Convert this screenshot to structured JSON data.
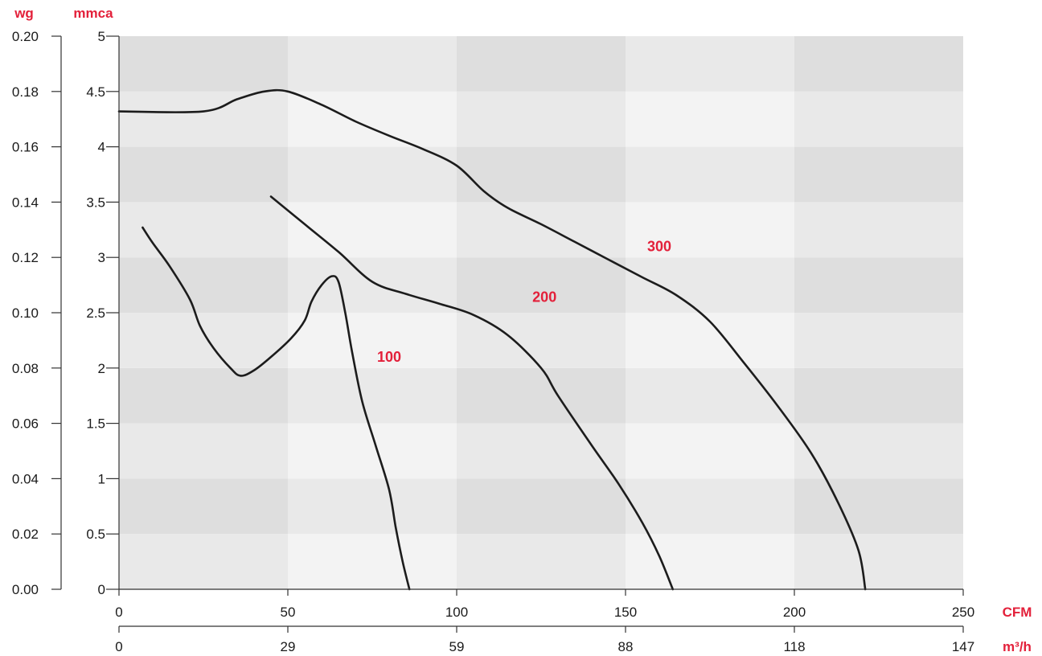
{
  "chart_data": {
    "type": "line",
    "units": {
      "wg": "wg",
      "mmca": "mmca",
      "cfm": "CFM",
      "m3h": "m³/h"
    },
    "y_left_wg": {
      "ticks": [
        0.0,
        0.02,
        0.04,
        0.06,
        0.08,
        0.1,
        0.12,
        0.14,
        0.16,
        0.18,
        0.2
      ],
      "tick_labels": [
        "0.00",
        "0.02",
        "0.04",
        "0.06",
        "0.08",
        "0.10",
        "0.12",
        "0.14",
        "0.16",
        "0.18",
        "0.20"
      ]
    },
    "y_mmca": {
      "ylim": [
        0,
        5
      ],
      "ticks": [
        0,
        0.5,
        1,
        1.5,
        2,
        2.5,
        3,
        3.5,
        4,
        4.5,
        5
      ],
      "tick_labels": [
        "0",
        "0.5",
        "1",
        "1.5",
        "2",
        "2.5",
        "3",
        "3.5",
        "4",
        "4.5",
        "5"
      ]
    },
    "x_cfm": {
      "xlim": [
        0,
        250
      ],
      "ticks": [
        0,
        50,
        100,
        150,
        200,
        250
      ],
      "tick_labels": [
        "0",
        "50",
        "100",
        "150",
        "200",
        "250"
      ]
    },
    "x_m3h": {
      "ticks": [
        0,
        29,
        59,
        88,
        118,
        147
      ],
      "tick_labels": [
        "0",
        "29",
        "59",
        "88",
        "118",
        "147"
      ]
    },
    "background": {
      "columns_cfm": [
        0,
        50,
        100,
        150,
        200,
        250
      ],
      "bands_mmca": [
        0,
        0.5,
        1,
        1.5,
        2,
        2.5,
        3,
        3.5,
        4,
        4.5,
        5
      ],
      "colors": {
        "light": "#f3f3f3",
        "mid": "#e9e9e9",
        "dark": "#dedede"
      }
    },
    "series": [
      {
        "name": "100",
        "label_at": [
          80,
          2.1
        ],
        "points": [
          [
            7,
            3.27
          ],
          [
            10,
            3.13
          ],
          [
            15,
            2.92
          ],
          [
            21,
            2.62
          ],
          [
            24,
            2.38
          ],
          [
            28,
            2.18
          ],
          [
            33,
            2.0
          ],
          [
            36,
            1.93
          ],
          [
            40,
            1.98
          ],
          [
            45,
            2.1
          ],
          [
            51,
            2.27
          ],
          [
            55,
            2.43
          ],
          [
            57,
            2.6
          ],
          [
            60,
            2.75
          ],
          [
            63,
            2.83
          ],
          [
            65,
            2.78
          ],
          [
            67,
            2.5
          ],
          [
            69,
            2.15
          ],
          [
            72,
            1.7
          ],
          [
            76,
            1.3
          ],
          [
            80,
            0.9
          ],
          [
            82,
            0.55
          ],
          [
            84,
            0.25
          ],
          [
            86,
            0.0
          ]
        ]
      },
      {
        "name": "200",
        "label_at": [
          126,
          2.64
        ],
        "points": [
          [
            45,
            3.55
          ],
          [
            55,
            3.3
          ],
          [
            65,
            3.05
          ],
          [
            75,
            2.78
          ],
          [
            85,
            2.67
          ],
          [
            95,
            2.58
          ],
          [
            105,
            2.48
          ],
          [
            115,
            2.3
          ],
          [
            125,
            2.0
          ],
          [
            130,
            1.75
          ],
          [
            140,
            1.3
          ],
          [
            148,
            0.95
          ],
          [
            155,
            0.6
          ],
          [
            160,
            0.3
          ],
          [
            164,
            0.0
          ]
        ]
      },
      {
        "name": "300",
        "label_at": [
          160,
          3.1
        ],
        "points": [
          [
            0,
            4.32
          ],
          [
            25,
            4.32
          ],
          [
            35,
            4.43
          ],
          [
            43,
            4.5
          ],
          [
            50,
            4.5
          ],
          [
            60,
            4.38
          ],
          [
            70,
            4.23
          ],
          [
            80,
            4.1
          ],
          [
            90,
            3.98
          ],
          [
            100,
            3.83
          ],
          [
            108,
            3.6
          ],
          [
            115,
            3.45
          ],
          [
            125,
            3.3
          ],
          [
            135,
            3.14
          ],
          [
            145,
            2.98
          ],
          [
            155,
            2.82
          ],
          [
            165,
            2.66
          ],
          [
            175,
            2.42
          ],
          [
            185,
            2.05
          ],
          [
            195,
            1.66
          ],
          [
            205,
            1.23
          ],
          [
            213,
            0.78
          ],
          [
            219,
            0.35
          ],
          [
            221,
            0.0
          ]
        ]
      }
    ]
  }
}
